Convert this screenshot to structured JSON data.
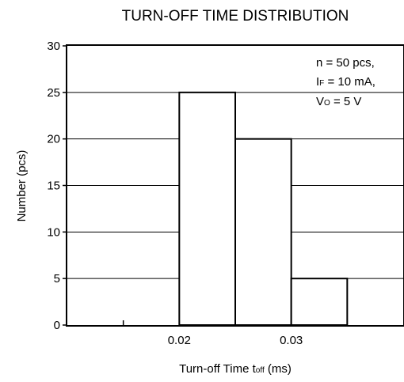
{
  "chart_data": {
    "type": "bar",
    "title": "TURN-OFF TIME DISTRIBUTION",
    "xlabel": {
      "main": "Turn-off Time  t",
      "subscript": "off",
      "unit": " (ms)"
    },
    "ylabel": "Number (pcs)",
    "x_ticks": [
      {
        "value": 0.02,
        "label": "0.02"
      },
      {
        "value": 0.03,
        "label": "0.03"
      }
    ],
    "x_minor_ticks": [
      0.015
    ],
    "y_ticks": [
      {
        "value": 0,
        "label": "0"
      },
      {
        "value": 5,
        "label": "5"
      },
      {
        "value": 10,
        "label": "10"
      },
      {
        "value": 15,
        "label": "15"
      },
      {
        "value": 20,
        "label": "20"
      },
      {
        "value": 25,
        "label": "25"
      },
      {
        "value": 30,
        "label": "30"
      }
    ],
    "xlim": [
      0.01,
      0.04
    ],
    "ylim": [
      0,
      30
    ],
    "grid": "horizontal",
    "bins": [
      {
        "start": 0.02,
        "end": 0.025,
        "value": 25
      },
      {
        "start": 0.025,
        "end": 0.03,
        "value": 20
      },
      {
        "start": 0.03,
        "end": 0.035,
        "value": 5
      }
    ],
    "annotations": [
      {
        "main": "n = 50 pcs,",
        "subscript": ""
      },
      {
        "main": "I",
        "subscript": "F",
        "rest": " = 10 mA,"
      },
      {
        "main": "V",
        "subscript": "O",
        "rest": " = 5 V"
      }
    ]
  }
}
